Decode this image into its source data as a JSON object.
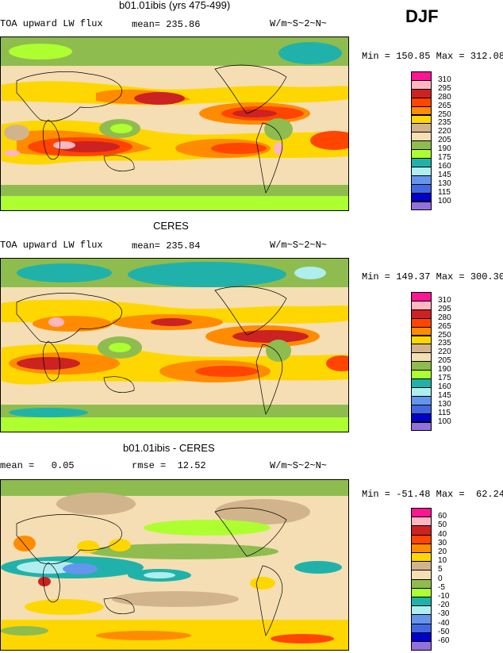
{
  "season": "DJF",
  "panels": [
    {
      "title": "b01.01ibis (yrs 475-499)",
      "left_text": "TOA upward LW flux",
      "mid_text": "mean= 235.86",
      "units": "W/m~S~2~N~",
      "minmax": "Min = 150.85 Max = 312.08"
    },
    {
      "title": "CERES",
      "left_text": "TOA upward LW flux",
      "mid_text": "mean= 235.84",
      "units": "W/m~S~2~N~",
      "minmax": "Min = 149.37 Max = 300.30"
    },
    {
      "title": "b01.01ibis - CERES",
      "left_text": "mean =   0.05",
      "mid_text": "rmse =  12.52",
      "units": "W/m~S~2~N~",
      "minmax": "Min = -51.48 Max =  62.24"
    }
  ],
  "colorbars": {
    "absolute": {
      "labels": [
        "310",
        "295",
        "280",
        "265",
        "250",
        "235",
        "220",
        "205",
        "190",
        "175",
        "160",
        "145",
        "130",
        "115",
        "100"
      ],
      "colors": [
        "#ff1493",
        "#ffb6c1",
        "#cc2222",
        "#ff4500",
        "#ff8c00",
        "#ffd700",
        "#d2b48c",
        "#f5deb3",
        "#8fbc4f",
        "#adff2f",
        "#20b2aa",
        "#afeeee",
        "#6495ed",
        "#4169e1",
        "#0000cd",
        "#9370db"
      ]
    },
    "difference": {
      "labels": [
        "60",
        "50",
        "40",
        "30",
        "20",
        "10",
        "5",
        "0",
        "-5",
        "-10",
        "-20",
        "-30",
        "-40",
        "-50",
        "-60"
      ],
      "colors": [
        "#ff1493",
        "#ffb6c1",
        "#cc2222",
        "#ff4500",
        "#ff8c00",
        "#ffd700",
        "#d2b48c",
        "#f5deb3",
        "#8fbc4f",
        "#adff2f",
        "#20b2aa",
        "#afeeee",
        "#6495ed",
        "#4169e1",
        "#0000cd",
        "#9370db"
      ]
    }
  }
}
